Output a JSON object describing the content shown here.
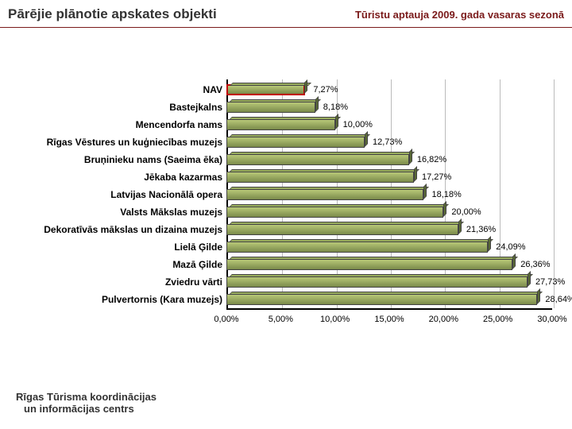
{
  "header": {
    "title_left": "Pārējie plānotie apskates objekti",
    "title_right": "Tūristu aptauja 2009. gada vasaras sezonā"
  },
  "footer": {
    "line1": "Rīgas Tūrisma koordinācijas",
    "line2": "un informācijas centrs"
  },
  "chart": {
    "type": "bar-horizontal",
    "xlim_max": 30,
    "xtick_step": 5,
    "xtick_labels": [
      "0,00%",
      "5,00%",
      "10,00%",
      "15,00%",
      "20,00%",
      "25,00%",
      "30,00%"
    ],
    "categories": [
      "NAV",
      "Bastejkalns",
      "Mencendorfa nams",
      "Rīgas Vēstures un kuģniecības muzejs",
      "Bruņinieku nams (Saeima ēka)",
      "Jēkaba kazarmas",
      "Latvijas Nacionālā opera",
      "Valsts Mākslas muzejs",
      "Dekoratīvās mākslas un dizaina muzejs",
      "Lielā Ģilde",
      "Mazā Ģilde",
      "Zviedru vārti",
      "Pulvertornis (Kara muzejs)"
    ],
    "values": [
      7.27,
      8.18,
      10.0,
      12.73,
      16.82,
      17.27,
      18.18,
      20.0,
      21.36,
      24.09,
      26.36,
      27.73,
      28.64
    ],
    "value_labels": [
      "7,27%",
      "8,18%",
      "10,00%",
      "12,73%",
      "16,82%",
      "17,27%",
      "18,18%",
      "20,00%",
      "21,36%",
      "24,09%",
      "26,36%",
      "27,73%",
      "28,64%"
    ],
    "bar_gradient_from": "#7a8a4a",
    "bar_gradient_to": "#b8c878",
    "bar_top_color": "#9aae5e",
    "bar_side_color": "#5a6a36",
    "highlight_index": 0,
    "highlight_border": "#c00000",
    "background": "#ffffff",
    "grid_color": "#bbbbbb",
    "label_fontsize": 12,
    "value_fontsize": 11
  }
}
